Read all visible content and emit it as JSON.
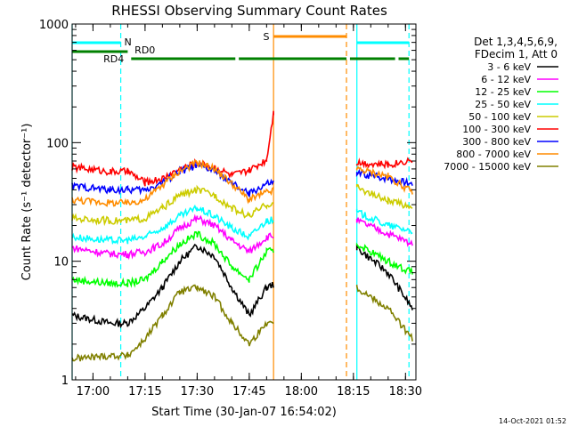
{
  "chart_data": {
    "type": "line",
    "title": "RHESSI Observing Summary Count Rates",
    "xlabel": "Start Time (30-Jan-07 16:54:02)",
    "ylabel": "Count Rate (s⁻¹ detector⁻¹)",
    "yscale": "log",
    "xlim": [
      "16:54",
      "18:33"
    ],
    "ylim": [
      1,
      1000
    ],
    "x_ticks": [
      "17:00",
      "17:15",
      "17:30",
      "17:45",
      "18:00",
      "18:15",
      "18:30"
    ],
    "y_ticks": [
      "1",
      "10",
      "100",
      "1000"
    ],
    "legend_title": [
      "Det 1,3,4,5,6,9,",
      "FDecim 1, Att 0"
    ],
    "legend_placement": "right",
    "footer": "14-Oct-2021 01:52",
    "gaps": [
      [
        "17:52",
        "18:16"
      ]
    ],
    "series": [
      {
        "name": "3 - 6 keV",
        "color": "#000000",
        "points": [
          [
            "16:54",
            3.5
          ],
          [
            "17:05",
            3
          ],
          [
            "17:10",
            3
          ],
          [
            "17:15",
            4
          ],
          [
            "17:20",
            6
          ],
          [
            "17:25",
            10
          ],
          [
            "17:30",
            13.5
          ],
          [
            "17:35",
            11
          ],
          [
            "17:40",
            6
          ],
          [
            "17:45",
            3.5
          ],
          [
            "17:50",
            6
          ],
          [
            "18:16",
            13
          ],
          [
            "18:25",
            8
          ],
          [
            "18:32",
            4
          ]
        ]
      },
      {
        "name": "6 - 12 keV",
        "color": "#ff00ff",
        "points": [
          [
            "16:54",
            13
          ],
          [
            "17:05",
            11.5
          ],
          [
            "17:10",
            11.5
          ],
          [
            "17:15",
            12
          ],
          [
            "17:20",
            14
          ],
          [
            "17:25",
            19
          ],
          [
            "17:30",
            23
          ],
          [
            "17:35",
            20
          ],
          [
            "17:40",
            15
          ],
          [
            "17:45",
            12
          ],
          [
            "17:50",
            16
          ],
          [
            "18:16",
            22
          ],
          [
            "18:25",
            17
          ],
          [
            "18:32",
            14
          ]
        ]
      },
      {
        "name": "12 - 25 keV",
        "color": "#00ff00",
        "points": [
          [
            "16:54",
            7
          ],
          [
            "17:05",
            6.5
          ],
          [
            "17:10",
            6.5
          ],
          [
            "17:15",
            7
          ],
          [
            "17:20",
            10
          ],
          [
            "17:25",
            14
          ],
          [
            "17:30",
            17
          ],
          [
            "17:35",
            14
          ],
          [
            "17:40",
            9
          ],
          [
            "17:45",
            7
          ],
          [
            "17:50",
            12
          ],
          [
            "18:16",
            14
          ],
          [
            "18:25",
            10
          ],
          [
            "18:32",
            8
          ]
        ]
      },
      {
        "name": "25 - 50 keV",
        "color": "#00ffff",
        "points": [
          [
            "16:54",
            16
          ],
          [
            "17:05",
            15
          ],
          [
            "17:10",
            15
          ],
          [
            "17:15",
            16
          ],
          [
            "17:20",
            19
          ],
          [
            "17:25",
            24
          ],
          [
            "17:30",
            28
          ],
          [
            "17:35",
            24
          ],
          [
            "17:40",
            19
          ],
          [
            "17:45",
            16
          ],
          [
            "17:50",
            22
          ],
          [
            "18:16",
            26
          ],
          [
            "18:25",
            20
          ],
          [
            "18:32",
            18
          ]
        ]
      },
      {
        "name": "50 - 100 keV",
        "color": "#cccc00",
        "points": [
          [
            "16:54",
            23
          ],
          [
            "17:05",
            22
          ],
          [
            "17:10",
            22
          ],
          [
            "17:15",
            23
          ],
          [
            "17:20",
            28
          ],
          [
            "17:25",
            36
          ],
          [
            "17:30",
            40
          ],
          [
            "17:35",
            36
          ],
          [
            "17:40",
            28
          ],
          [
            "17:45",
            24
          ],
          [
            "17:50",
            30
          ],
          [
            "18:16",
            42
          ],
          [
            "18:25",
            32
          ],
          [
            "18:32",
            29
          ]
        ]
      },
      {
        "name": "100 - 300 keV",
        "color": "#ff0000",
        "points": [
          [
            "16:54",
            62
          ],
          [
            "17:05",
            57
          ],
          [
            "17:10",
            57
          ],
          [
            "17:15",
            46
          ],
          [
            "17:20",
            50
          ],
          [
            "17:25",
            60
          ],
          [
            "17:30",
            68
          ],
          [
            "17:35",
            62
          ],
          [
            "17:40",
            53
          ],
          [
            "17:45",
            58
          ],
          [
            "17:50",
            72
          ],
          [
            "17:52",
            180
          ],
          [
            "18:16",
            68
          ],
          [
            "18:25",
            65
          ],
          [
            "18:32",
            72
          ]
        ]
      },
      {
        "name": "300 - 800 keV",
        "color": "#0000ff",
        "points": [
          [
            "16:54",
            43
          ],
          [
            "17:05",
            40
          ],
          [
            "17:10",
            40
          ],
          [
            "17:15",
            40
          ],
          [
            "17:20",
            46
          ],
          [
            "17:25",
            57
          ],
          [
            "17:30",
            64
          ],
          [
            "17:35",
            58
          ],
          [
            "17:40",
            45
          ],
          [
            "17:45",
            37
          ],
          [
            "17:50",
            45
          ],
          [
            "18:16",
            55
          ],
          [
            "18:25",
            50
          ],
          [
            "18:32",
            45
          ]
        ]
      },
      {
        "name": "800 - 7000 keV",
        "color": "#ff8c00",
        "points": [
          [
            "16:54",
            33
          ],
          [
            "17:05",
            31
          ],
          [
            "17:10",
            31
          ],
          [
            "17:15",
            33
          ],
          [
            "17:20",
            44
          ],
          [
            "17:25",
            58
          ],
          [
            "17:30",
            68
          ],
          [
            "17:35",
            60
          ],
          [
            "17:40",
            45
          ],
          [
            "17:45",
            33
          ],
          [
            "17:50",
            38
          ],
          [
            "18:16",
            60
          ],
          [
            "18:25",
            52
          ],
          [
            "18:32",
            38
          ]
        ]
      },
      {
        "name": "7000 - 15000 keV",
        "color": "#808000",
        "points": [
          [
            "16:54",
            1.5
          ],
          [
            "17:05",
            1.6
          ],
          [
            "17:10",
            1.6
          ],
          [
            "17:15",
            2.2
          ],
          [
            "17:20",
            3.5
          ],
          [
            "17:25",
            5.5
          ],
          [
            "17:30",
            6
          ],
          [
            "17:35",
            5
          ],
          [
            "17:40",
            3
          ],
          [
            "17:45",
            2
          ],
          [
            "17:50",
            3
          ],
          [
            "18:16",
            6
          ],
          [
            "18:25",
            4
          ],
          [
            "18:32",
            2.2
          ]
        ]
      }
    ],
    "annotations": {
      "vertical_lines": [
        {
          "time": "16:54",
          "color": "#00ffff",
          "style": "solid"
        },
        {
          "time": "17:08",
          "color": "#00ffff",
          "style": "dashed"
        },
        {
          "time": "17:52",
          "color": "#ff8c00",
          "style": "solid"
        },
        {
          "time": "18:13",
          "color": "#ff8c00",
          "style": "dashed"
        },
        {
          "time": "18:16",
          "color": "#00ffff",
          "style": "solid"
        },
        {
          "time": "18:31",
          "color": "#00ffff",
          "style": "dashed"
        }
      ],
      "bars": [
        {
          "label": "N",
          "color": "#00ffff",
          "segments": [
            [
              "16:54",
              "17:08"
            ],
            [
              "18:16",
              "18:31"
            ]
          ]
        },
        {
          "label": "S",
          "color": "#ff8c00",
          "segments": [
            [
              "17:52",
              "18:13"
            ]
          ]
        },
        {
          "label": "RD4",
          "color": "#008000",
          "segments": [
            [
              "16:54",
              "17:10"
            ]
          ]
        },
        {
          "label": "RD0",
          "color": "#008000",
          "segments": [
            [
              "17:11",
              "17:41"
            ],
            [
              "17:42",
              "18:13"
            ],
            [
              "18:14",
              "18:27"
            ],
            [
              "18:28",
              "18:31"
            ]
          ]
        }
      ]
    }
  }
}
